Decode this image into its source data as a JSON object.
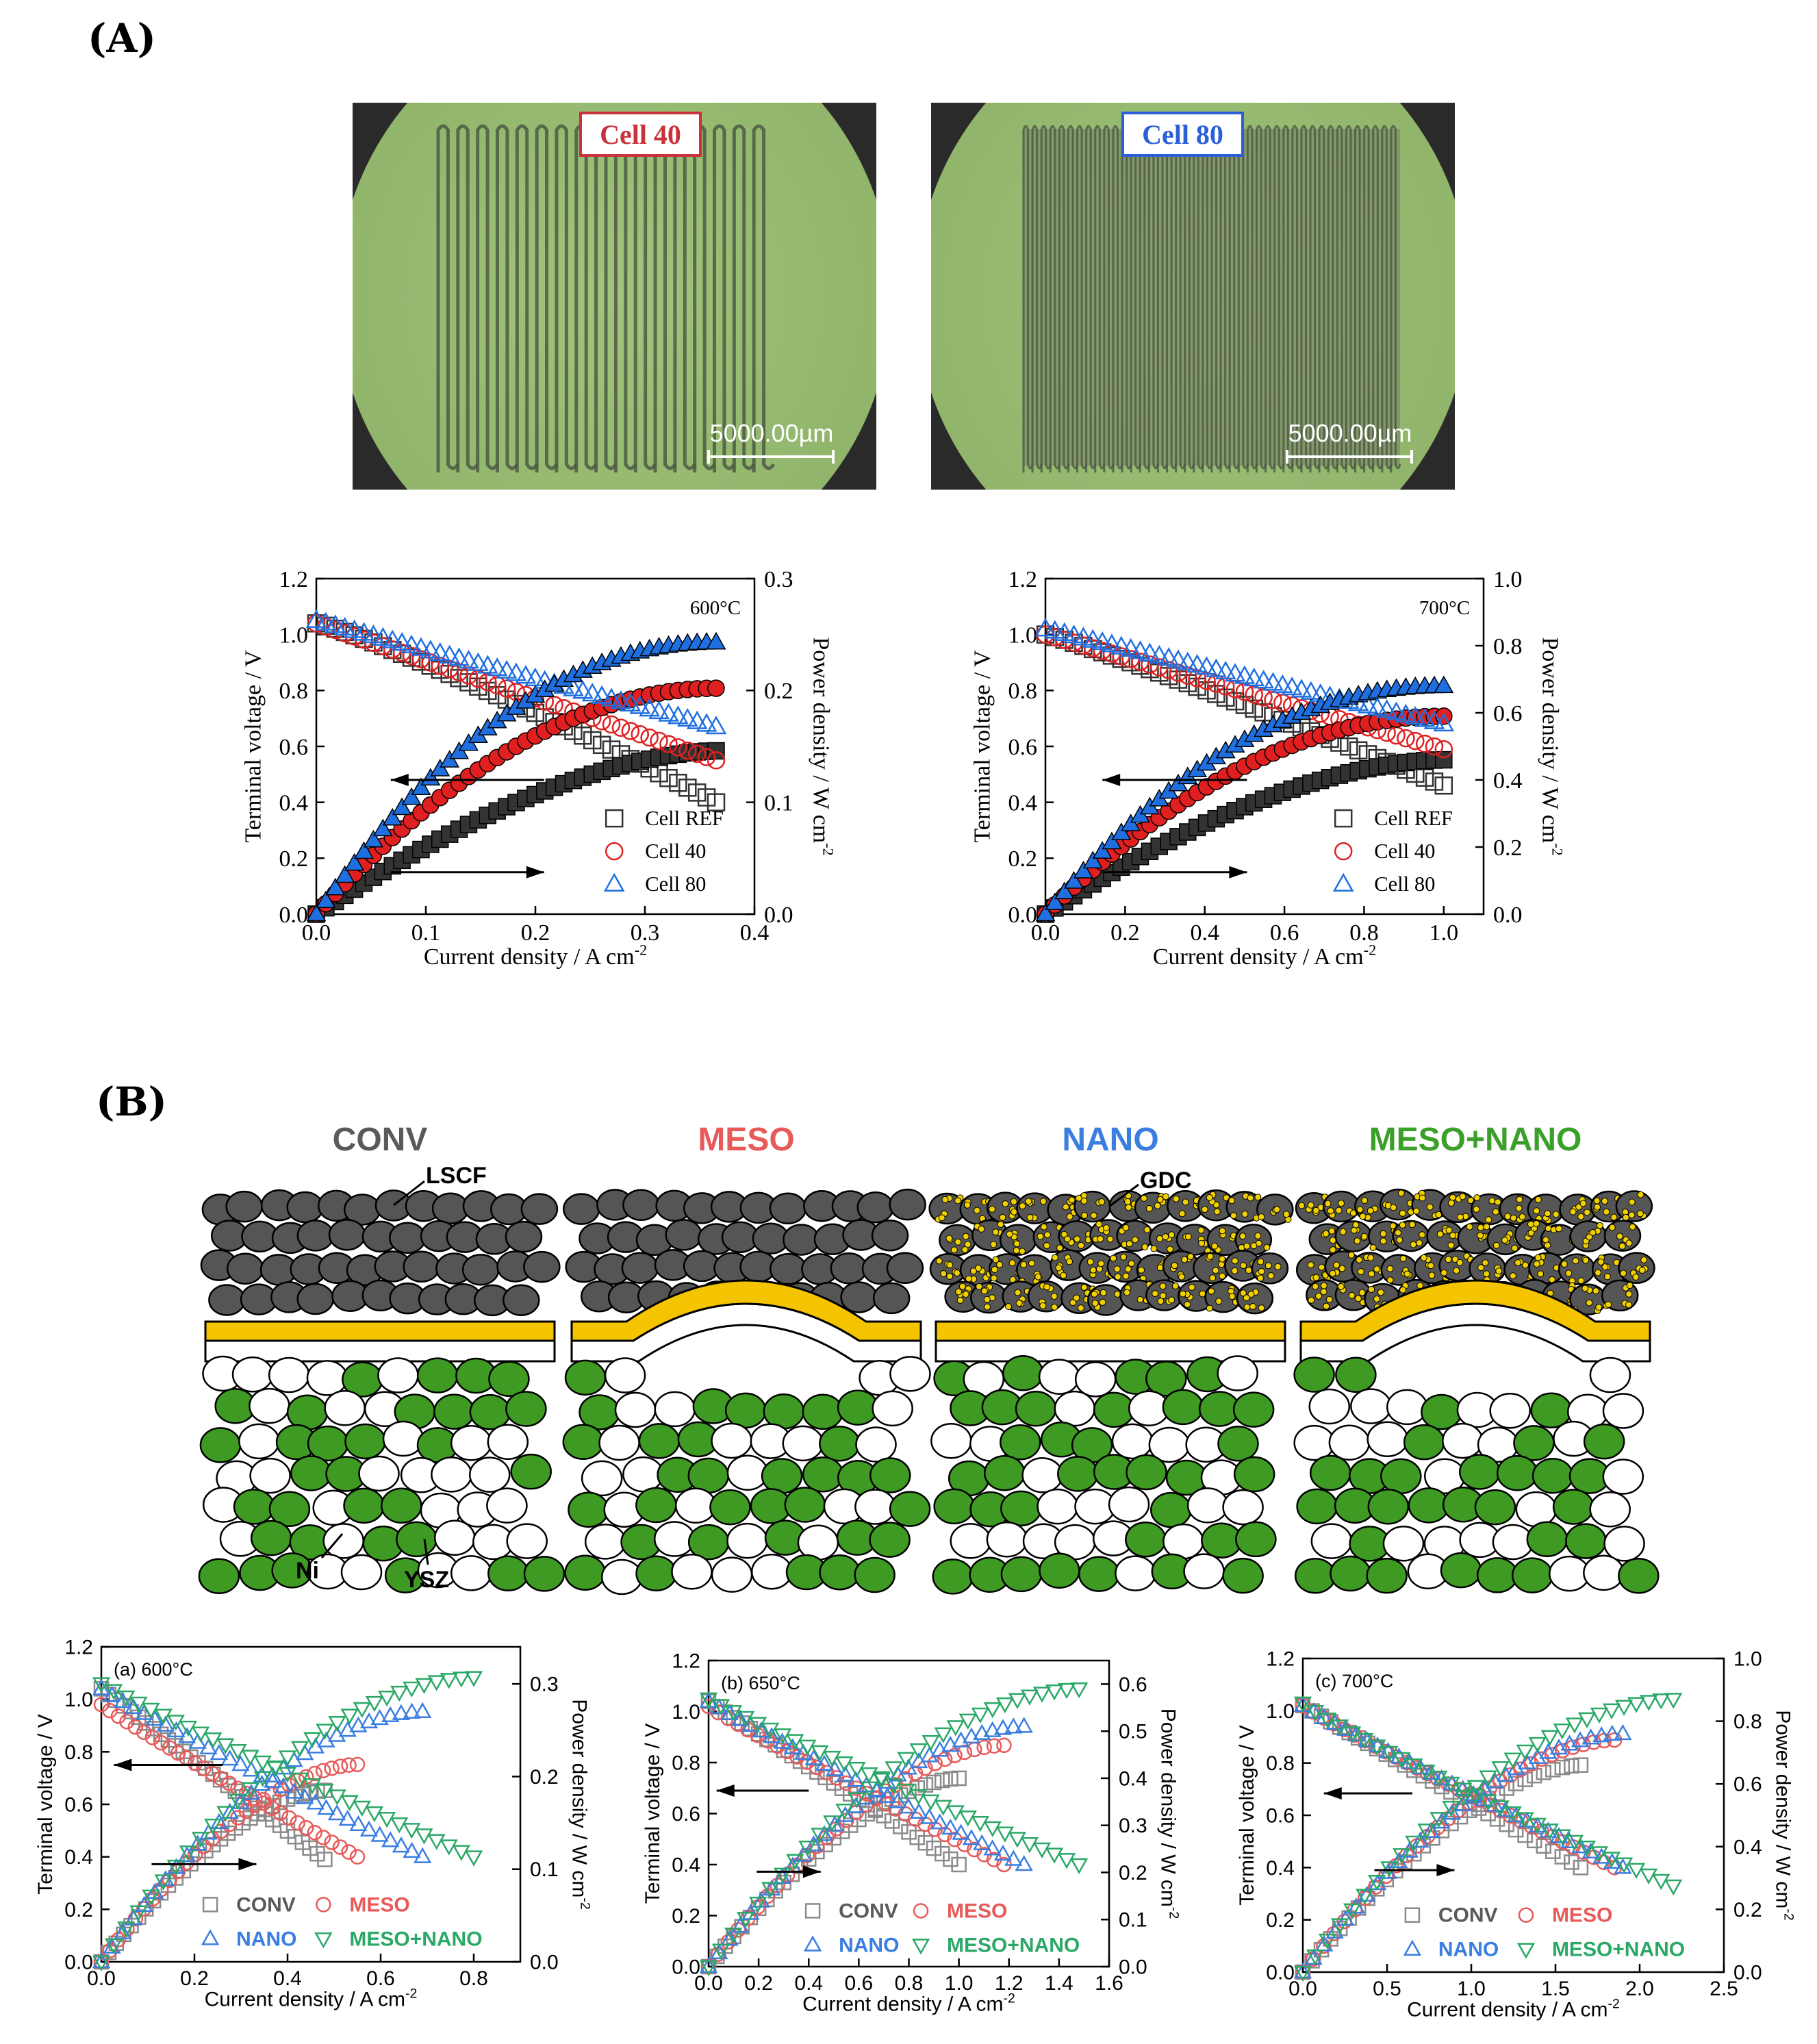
{
  "panel_labels": {
    "a": "(A)",
    "b": "(B)"
  },
  "photos": [
    {
      "label": "Cell 40",
      "scale": "5000.00µm",
      "color": "#c8323a",
      "channels": 17
    },
    {
      "label": "Cell 80",
      "scale": "5000.00µm",
      "color": "#2b5fd8",
      "channels": 42
    }
  ],
  "schematic": {
    "titles": [
      {
        "text": "CONV",
        "color": "#5a5a5a"
      },
      {
        "text": "MESO",
        "color": "#e85a5a"
      },
      {
        "text": "NANO",
        "color": "#3a7ee0"
      },
      {
        "text": "MESO+NANO",
        "color": "#3aa02a"
      }
    ],
    "labels": {
      "lscf": "LSCF",
      "gdc": "GDC",
      "ni": "Ni",
      "ysz": "YSZ"
    },
    "colors": {
      "lscf": "#555555",
      "electrolyte": "#f5c400",
      "ni": "#3f9a24",
      "ysz": "#ffffff",
      "gdc": "#f0d000"
    }
  },
  "chart_data": [
    {
      "type": "line",
      "temperature": "600°C",
      "xlabel": "Current density / A cm",
      "xlabel_sup": "-2",
      "ylabel": "Terminal voltage / V",
      "y2label": "Power density / W cm",
      "y2label_sup": "-2",
      "xlim": [
        0,
        0.4
      ],
      "ylim": [
        0,
        1.2
      ],
      "y2lim": [
        0,
        0.3
      ],
      "xticks": [
        "0.0",
        "0.1",
        "0.2",
        "0.3",
        "0.4"
      ],
      "yticks": [
        "0.0",
        "0.2",
        "0.4",
        "0.6",
        "0.8",
        "1.0",
        "1.2"
      ],
      "y2ticks": [
        "0.0",
        "0.1",
        "0.2",
        "0.3"
      ],
      "legend_position": "bottom-right",
      "series": [
        {
          "name": "Cell REF",
          "marker": "square",
          "color": "#333333",
          "xmax": 0.365,
          "voltage": [
            1.04,
            0.4
          ],
          "power": [
            0.0,
            0.146
          ],
          "vcurve": 1.15,
          "pcurve": 0.55
        },
        {
          "name": "Cell 40",
          "marker": "circle",
          "color": "#e02020",
          "xmax": 0.365,
          "voltage": [
            1.04,
            0.55
          ],
          "power": [
            0.0,
            0.202
          ],
          "vcurve": 1.0,
          "pcurve": 0.8
        },
        {
          "name": "Cell 80",
          "marker": "triangle",
          "color": "#1f6fe0",
          "xmax": 0.365,
          "voltage": [
            1.05,
            0.67
          ],
          "power": [
            0.0,
            0.243
          ],
          "vcurve": 1.0,
          "pcurve": 0.88
        }
      ]
    },
    {
      "type": "line",
      "temperature": "700°C",
      "xlabel": "Current density / A cm",
      "xlabel_sup": "-2",
      "ylabel": "Terminal voltage / V",
      "y2label": "Power density / W cm",
      "y2label_sup": "-2",
      "xlim": [
        0,
        1.1
      ],
      "ylim": [
        0,
        1.2
      ],
      "y2lim": [
        0,
        1.0
      ],
      "xticks": [
        "0.0",
        "0.2",
        "0.4",
        "0.6",
        "0.8",
        "1.0"
      ],
      "yticks": [
        "0.0",
        "0.2",
        "0.4",
        "0.6",
        "0.8",
        "1.0",
        "1.2"
      ],
      "y2ticks": [
        "0.0",
        "0.2",
        "0.4",
        "0.6",
        "0.8",
        "1.0"
      ],
      "legend_position": "bottom-right",
      "series": [
        {
          "name": "Cell REF",
          "marker": "square",
          "color": "#333333",
          "xmax": 1.0,
          "voltage": [
            1.0,
            0.46
          ],
          "power": [
            0.0,
            0.46
          ],
          "vcurve": 1.1,
          "pcurve": 0.6
        },
        {
          "name": "Cell 40",
          "marker": "circle",
          "color": "#e02020",
          "xmax": 1.0,
          "voltage": [
            1.0,
            0.59
          ],
          "power": [
            0.0,
            0.59
          ],
          "vcurve": 1.0,
          "pcurve": 0.82
        },
        {
          "name": "Cell 80",
          "marker": "triangle",
          "color": "#1f6fe0",
          "xmax": 1.0,
          "voltage": [
            1.02,
            0.68
          ],
          "power": [
            0.0,
            0.68
          ],
          "vcurve": 1.0,
          "pcurve": 0.9
        }
      ]
    },
    {
      "type": "line",
      "temperature": "(a) 600°C",
      "xlabel": "Current density / A cm",
      "xlabel_sup": "-2",
      "ylabel": "Terminal voltage / V",
      "y2label": "Power density / W cm",
      "y2label_sup": "-2",
      "xlim": [
        0,
        0.9
      ],
      "ylim": [
        0,
        1.2
      ],
      "y2lim": [
        0,
        0.34
      ],
      "xticks": [
        "0.0",
        "0.2",
        "0.4",
        "0.6",
        "0.8"
      ],
      "yticks": [
        "0.0",
        "0.2",
        "0.4",
        "0.6",
        "0.8",
        "1.0",
        "1.2"
      ],
      "y2ticks": [
        "0.0",
        "0.1",
        "0.2",
        "0.3"
      ],
      "legend_position": "bottom-right",
      "series": [
        {
          "name": "CONV",
          "marker": "square",
          "color": "#8a8a8a",
          "xmax": 0.48,
          "voltage": [
            1.04,
            0.39
          ],
          "power": [
            0.0,
            0.185
          ],
          "vcurve": 1.0,
          "pcurve": 0.55
        },
        {
          "name": "MESO",
          "marker": "circle",
          "color": "#e85a5a",
          "xmax": 0.55,
          "voltage": [
            0.98,
            0.4
          ],
          "power": [
            0.0,
            0.213
          ],
          "vcurve": 0.95,
          "pcurve": 0.6
        },
        {
          "name": "NANO",
          "marker": "triangle",
          "color": "#3a7ee0",
          "xmax": 0.69,
          "voltage": [
            1.04,
            0.4
          ],
          "power": [
            0.0,
            0.27
          ],
          "vcurve": 0.95,
          "pcurve": 0.65
        },
        {
          "name": "MESO+NANO",
          "marker": "triangle-down",
          "color": "#2aa866",
          "xmax": 0.8,
          "voltage": [
            1.06,
            0.4
          ],
          "power": [
            0.0,
            0.307
          ],
          "vcurve": 0.95,
          "pcurve": 0.7
        }
      ]
    },
    {
      "type": "line",
      "temperature": "(b) 650°C",
      "xlabel": "Current density / A cm",
      "xlabel_sup": "-2",
      "ylabel": "Terminal voltage / V",
      "y2label": "Power density / W cm",
      "y2label_sup": "-2",
      "xlim": [
        0,
        1.6
      ],
      "ylim": [
        0,
        1.2
      ],
      "y2lim": [
        0,
        0.65
      ],
      "xticks": [
        "0.0",
        "0.2",
        "0.4",
        "0.6",
        "0.8",
        "1.0",
        "1.2",
        "1.4",
        "1.6"
      ],
      "yticks": [
        "0.0",
        "0.2",
        "0.4",
        "0.6",
        "0.8",
        "1.0",
        "1.2"
      ],
      "y2ticks": [
        "0.0",
        "0.1",
        "0.2",
        "0.3",
        "0.4",
        "0.5",
        "0.6"
      ],
      "legend_position": "bottom-right",
      "series": [
        {
          "name": "CONV",
          "marker": "square",
          "color": "#8a8a8a",
          "xmax": 1.0,
          "voltage": [
            1.04,
            0.4
          ],
          "power": [
            0.0,
            0.4
          ],
          "vcurve": 1.0,
          "pcurve": 0.55
        },
        {
          "name": "MESO",
          "marker": "circle",
          "color": "#e85a5a",
          "xmax": 1.18,
          "voltage": [
            1.02,
            0.4
          ],
          "power": [
            0.0,
            0.47
          ],
          "vcurve": 0.95,
          "pcurve": 0.6
        },
        {
          "name": "NANO",
          "marker": "triangle",
          "color": "#3a7ee0",
          "xmax": 1.26,
          "voltage": [
            1.04,
            0.4
          ],
          "power": [
            0.0,
            0.51
          ],
          "vcurve": 0.95,
          "pcurve": 0.62
        },
        {
          "name": "MESO+NANO",
          "marker": "triangle-down",
          "color": "#2aa866",
          "xmax": 1.48,
          "voltage": [
            1.05,
            0.4
          ],
          "power": [
            0.0,
            0.59
          ],
          "vcurve": 0.95,
          "pcurve": 0.68
        }
      ]
    },
    {
      "type": "line",
      "temperature": "(c) 700°C",
      "xlabel": "Current density / A cm",
      "xlabel_sup": "-2",
      "ylabel": "Terminal voltage / V",
      "y2label": "Power density / W cm",
      "y2label_sup": "-2",
      "xlim": [
        0,
        2.5
      ],
      "ylim": [
        0,
        1.2
      ],
      "y2lim": [
        0,
        1.0
      ],
      "xticks": [
        "0.0",
        "0.5",
        "1.0",
        "1.5",
        "2.0",
        "2.5"
      ],
      "yticks": [
        "0.0",
        "0.2",
        "0.4",
        "0.6",
        "0.8",
        "1.0",
        "1.2"
      ],
      "y2ticks": [
        "0.0",
        "0.2",
        "0.4",
        "0.6",
        "0.8",
        "1.0"
      ],
      "legend_position": "bottom-right",
      "series": [
        {
          "name": "CONV",
          "marker": "square",
          "color": "#8a8a8a",
          "xmax": 1.65,
          "voltage": [
            1.02,
            0.4
          ],
          "power": [
            0.0,
            0.66
          ],
          "vcurve": 1.0,
          "pcurve": 0.55
        },
        {
          "name": "MESO",
          "marker": "circle",
          "color": "#e85a5a",
          "xmax": 1.85,
          "voltage": [
            1.02,
            0.4
          ],
          "power": [
            0.0,
            0.74
          ],
          "vcurve": 0.95,
          "pcurve": 0.6
        },
        {
          "name": "NANO",
          "marker": "triangle",
          "color": "#3a7ee0",
          "xmax": 1.9,
          "voltage": [
            1.02,
            0.4
          ],
          "power": [
            0.0,
            0.76
          ],
          "vcurve": 0.95,
          "pcurve": 0.62
        },
        {
          "name": "MESO+NANO",
          "marker": "triangle-down",
          "color": "#2aa866",
          "xmax": 2.2,
          "voltage": [
            1.03,
            0.33
          ],
          "power": [
            0.0,
            0.87
          ],
          "vcurve": 0.9,
          "pcurve": 0.68
        }
      ]
    }
  ]
}
